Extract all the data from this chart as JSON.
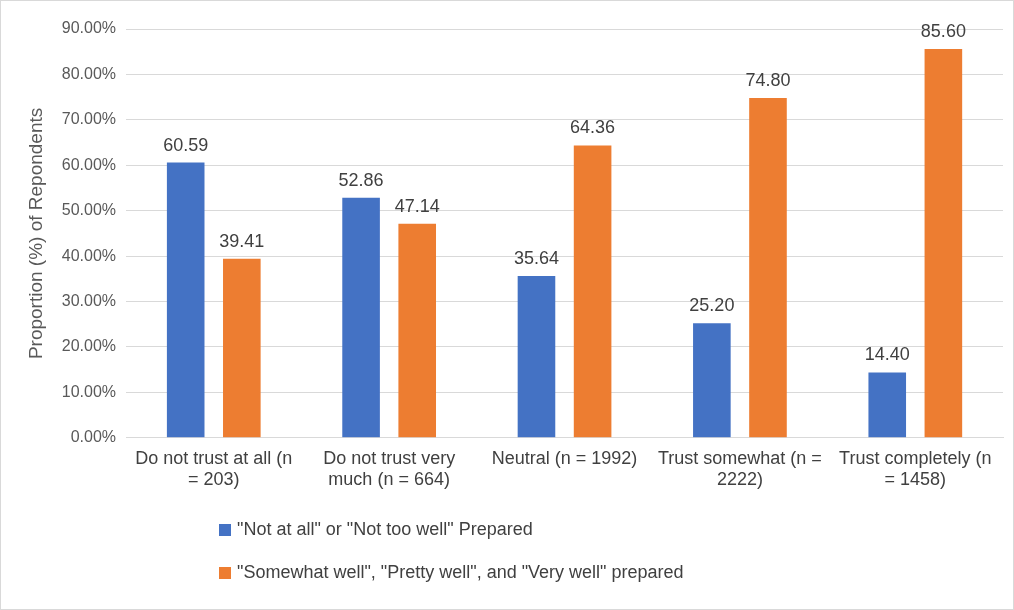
{
  "chart_data": {
    "type": "bar",
    "ylabel": "Proportion (%) of Repondents",
    "categories": [
      "Do not trust at all (n = 203)",
      "Do not trust very much (n = 664)",
      "Neutral (n = 1992)",
      "Trust somewhat (n = 2222)",
      "Trust completely (n = 1458)"
    ],
    "series": [
      {
        "name": "\"Not at all\" or \"Not too well\" Prepared",
        "color": "#4472c4",
        "values": [
          60.59,
          52.86,
          35.64,
          25.2,
          14.4
        ],
        "value_labels": [
          "60.59",
          "52.86",
          "35.64",
          "25.20",
          "14.40"
        ]
      },
      {
        "name": "\"Somewhat well\", \"Pretty well\", and \"Very well\" prepared",
        "color": "#ed7d31",
        "values": [
          39.41,
          47.14,
          64.36,
          74.8,
          85.6
        ],
        "value_labels": [
          "39.41",
          "47.14",
          "64.36",
          "74.80",
          "85.60"
        ]
      }
    ],
    "ylim": [
      0,
      90
    ],
    "yticks": [
      {
        "value": 0,
        "label": "0.00%"
      },
      {
        "value": 10,
        "label": "10.00%"
      },
      {
        "value": 20,
        "label": "20.00%"
      },
      {
        "value": 30,
        "label": "30.00%"
      },
      {
        "value": 40,
        "label": "40.00%"
      },
      {
        "value": 50,
        "label": "50.00%"
      },
      {
        "value": 60,
        "label": "60.00%"
      },
      {
        "value": 70,
        "label": "70.00%"
      },
      {
        "value": 80,
        "label": "80.00%"
      },
      {
        "value": 90,
        "label": "90.00%"
      }
    ],
    "grid": "y",
    "legend": "bottom"
  }
}
